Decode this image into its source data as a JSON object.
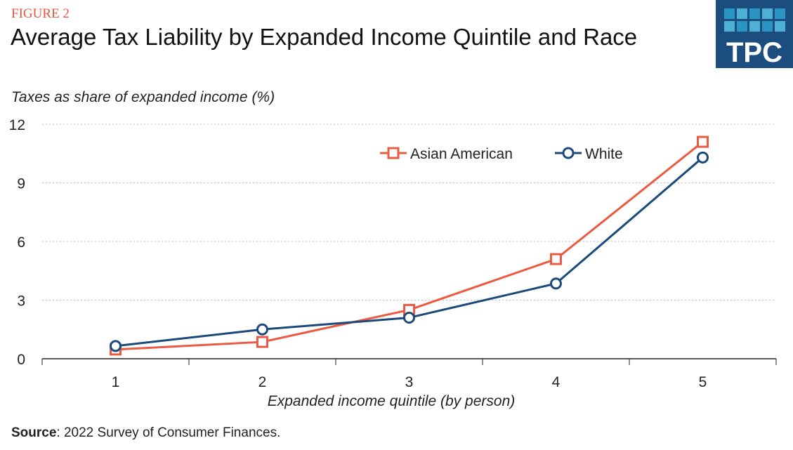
{
  "figure_label": "FIGURE 2",
  "logo_text": "TPC",
  "source_label": "Source",
  "source_text": ": 2022 Survey of Consumer Finances.",
  "chart_data": {
    "type": "line",
    "title": "Average Tax Liability by Expanded Income Quintile and Race",
    "ylabel": "Taxes as share of expanded income (%)",
    "xlabel": "Expanded income quintile (by person)",
    "categories": [
      "1",
      "2",
      "3",
      "4",
      "5"
    ],
    "ylim": [
      0,
      12
    ],
    "yticks": [
      0,
      3,
      6,
      9,
      12
    ],
    "grid": "horizontal dotted",
    "legend": "top-right",
    "series": [
      {
        "name": "Asian American",
        "color": "#ea5b43",
        "marker": "square",
        "values": [
          0.47,
          0.86,
          2.5,
          5.1,
          11.1
        ]
      },
      {
        "name": "White",
        "color": "#1b4a7a",
        "marker": "circle",
        "values": [
          0.65,
          1.5,
          2.1,
          3.85,
          10.3
        ]
      }
    ]
  }
}
